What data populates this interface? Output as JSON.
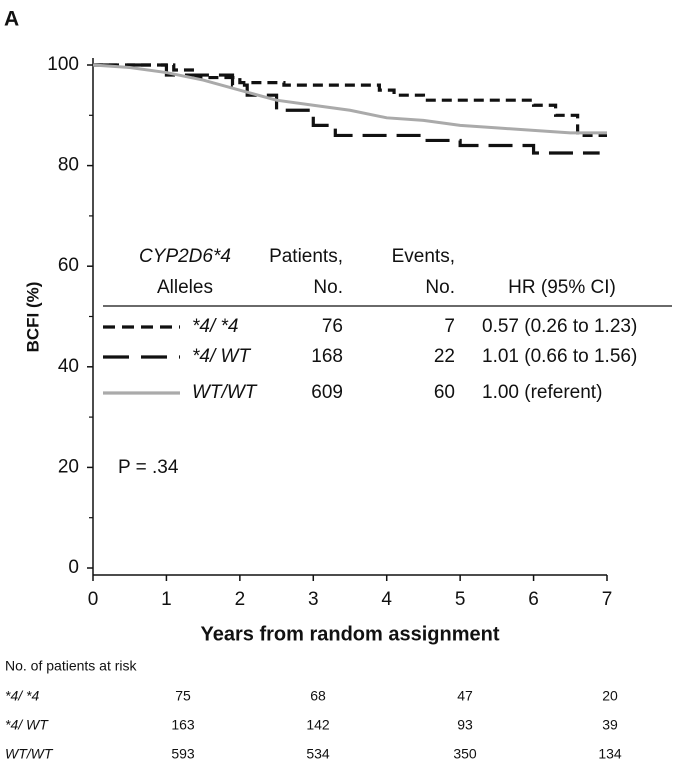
{
  "chart_data": {
    "type": "line",
    "panel_label": "A",
    "xlabel": "Years from random assignment",
    "ylabel": "BCFI (%)",
    "xlim": [
      0,
      7
    ],
    "xticks": [
      0,
      1,
      2,
      3,
      4,
      5,
      6,
      7
    ],
    "ylim": [
      0,
      100
    ],
    "yticks": [
      0,
      20,
      40,
      60,
      80,
      100
    ],
    "yminorticks": [
      10,
      30,
      50,
      70,
      90
    ],
    "step": true,
    "series": [
      {
        "name": "*4/ *4",
        "color": "#111111",
        "linestyle": "dashed",
        "x": [
          0,
          1.1,
          1.1,
          1.4,
          1.4,
          2.0,
          2.0,
          2.6,
          2.6,
          3.9,
          3.9,
          4.1,
          4.1,
          4.5,
          4.5,
          6.0,
          6.0,
          6.3,
          6.3,
          6.6,
          6.6,
          7.0
        ],
        "values": [
          100,
          100,
          99,
          99,
          97.5,
          97.5,
          96.5,
          96.5,
          96,
          96,
          95,
          95,
          94,
          94,
          93,
          93,
          92,
          92,
          90,
          90,
          86,
          86
        ]
      },
      {
        "name": "*4/ WT",
        "color": "#111111",
        "linestyle": "longdash",
        "x": [
          0,
          1.0,
          1.0,
          1.9,
          1.9,
          2.1,
          2.1,
          2.5,
          2.5,
          3.0,
          3.0,
          3.3,
          3.3,
          4.5,
          4.5,
          5.0,
          5.0,
          6.0,
          6.0,
          6.9
        ],
        "values": [
          100,
          100,
          98,
          98,
          96,
          96,
          94,
          94,
          91,
          91,
          88,
          88,
          86,
          86,
          85,
          85,
          84,
          84,
          82.5,
          82.5
        ]
      },
      {
        "name": "WT/WT",
        "color": "#aaaaaa",
        "linestyle": "solid",
        "x": [
          0,
          0.5,
          1,
          1.5,
          2,
          2.5,
          3,
          3.5,
          4,
          4.5,
          5,
          5.5,
          6,
          6.5,
          7
        ],
        "values": [
          100,
          99.5,
          98.5,
          97,
          95,
          93,
          92,
          91,
          89.5,
          89,
          88,
          87.5,
          87,
          86.5,
          86.5
        ]
      }
    ],
    "legend_table": {
      "headers": [
        [
          "CYP2D6*4",
          "Alleles"
        ],
        [
          "Patients,",
          "No."
        ],
        [
          "Events,",
          "No."
        ],
        [
          "HR (95% CI)"
        ]
      ],
      "rows": [
        {
          "patients": 76,
          "events": 7,
          "hr": "0.57 (0.26 to 1.23)"
        },
        {
          "patients": 168,
          "events": 22,
          "hr": "1.01 (0.66 to 1.56)"
        },
        {
          "patients": 609,
          "events": 60,
          "hr": "1.00 (referent)"
        }
      ]
    },
    "annotation": "P = .34",
    "risk_table": {
      "title": "No. of patients at risk",
      "rows": [
        {
          "name": "*4/ *4",
          "values": [
            75,
            68,
            47,
            20
          ]
        },
        {
          "name": "*4/ WT",
          "values": [
            163,
            142,
            93,
            39
          ]
        },
        {
          "name": "WT/WT",
          "values": [
            593,
            534,
            350,
            134
          ]
        }
      ]
    }
  }
}
